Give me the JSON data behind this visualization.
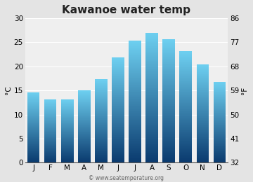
{
  "title": "Kawanoe water temp",
  "months": [
    "J",
    "F",
    "M",
    "A",
    "M",
    "J",
    "J",
    "A",
    "S",
    "O",
    "N",
    "D"
  ],
  "values_c": [
    14.6,
    13.2,
    13.2,
    15.0,
    17.3,
    21.8,
    25.3,
    27.0,
    25.6,
    23.1,
    20.4,
    16.8
  ],
  "ylim_c": [
    0,
    30
  ],
  "yticks_c": [
    0,
    5,
    10,
    15,
    20,
    25,
    30
  ],
  "yticks_f": [
    32,
    41,
    50,
    59,
    68,
    77,
    86
  ],
  "ylabel_left": "°C",
  "ylabel_right": "°F",
  "bar_color_top": "#6dcff0",
  "bar_color_bottom": "#0a3a6e",
  "background_color": "#e4e4e4",
  "plot_bg_color": "#efefef",
  "grid_color": "#ffffff",
  "watermark": "© www.seatemperature.org",
  "title_fontsize": 11,
  "axis_fontsize": 7.5,
  "tick_fontsize": 7.5,
  "watermark_fontsize": 5.5
}
